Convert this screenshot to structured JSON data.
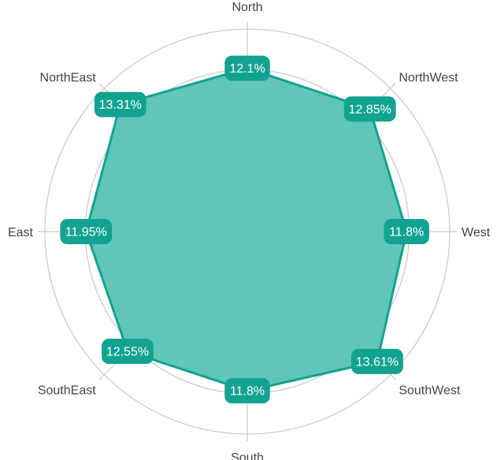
{
  "chart_data": {
    "type": "radar",
    "categories": [
      "North",
      "NorthWest",
      "West",
      "SouthWest",
      "South",
      "SouthEast",
      "East",
      "NorthEast"
    ],
    "values": [
      12.1,
      12.85,
      11.8,
      13.61,
      11.8,
      12.55,
      11.95,
      13.31
    ],
    "value_labels": [
      "12.1%",
      "12.85%",
      "11.8%",
      "13.61%",
      "11.8%",
      "12.55%",
      "11.95%",
      "13.31%"
    ],
    "unit": "%",
    "rlim": [
      0,
      15
    ],
    "grid": true,
    "legend": "none"
  },
  "colors": {
    "fill": "#5fc6b9",
    "stroke": "#12a390",
    "label_bg": "#12a390",
    "grid": "#cccccc",
    "text": "#444444"
  }
}
